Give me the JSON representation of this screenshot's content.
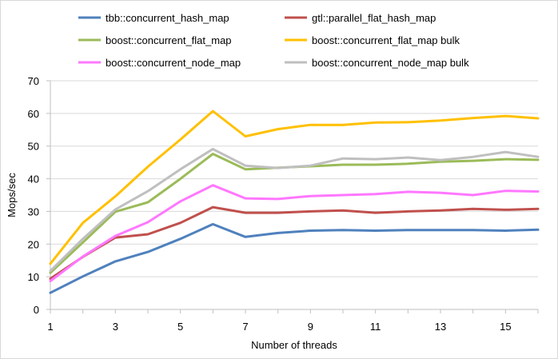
{
  "chart_data": {
    "type": "line",
    "title": "",
    "xlabel": "Number of threads",
    "ylabel": "Mops/sec",
    "xlim": [
      1,
      16
    ],
    "ylim": [
      0,
      70
    ],
    "x": [
      1,
      2,
      3,
      4,
      5,
      6,
      7,
      8,
      9,
      10,
      11,
      12,
      13,
      14,
      15,
      16
    ],
    "x_tick_labels": [
      "1",
      "3",
      "5",
      "7",
      "9",
      "11",
      "13",
      "15"
    ],
    "y_tick_labels": [
      "0",
      "10",
      "20",
      "30",
      "40",
      "50",
      "60",
      "70"
    ],
    "grid": "horizontal",
    "legend_position": "top",
    "series": [
      {
        "name": "tbb::concurrent_hash_map",
        "color": "#4f81bd",
        "values": [
          5.1,
          10.1,
          14.7,
          17.6,
          21.6,
          26.1,
          22.2,
          23.4,
          24.1,
          24.3,
          24.1,
          24.3,
          24.3,
          24.3,
          24.1,
          24.4
        ]
      },
      {
        "name": "gtl::parallel_flat_hash_map",
        "color": "#c0504d",
        "values": [
          9.4,
          16.1,
          22.0,
          23.0,
          26.5,
          31.3,
          29.6,
          29.6,
          30.0,
          30.3,
          29.6,
          30.0,
          30.3,
          30.8,
          30.5,
          30.8
        ]
      },
      {
        "name": "boost::concurrent_flat_map",
        "color": "#9bbb59",
        "values": [
          11.2,
          20.5,
          29.9,
          32.8,
          40.0,
          47.6,
          42.9,
          43.4,
          43.8,
          44.3,
          44.3,
          44.6,
          45.2,
          45.5,
          46.0,
          45.8
        ]
      },
      {
        "name": "boost::concurrent_flat_map bulk",
        "color": "#ffc000",
        "values": [
          14.0,
          26.5,
          34.6,
          43.7,
          52.0,
          60.7,
          53.0,
          55.2,
          56.5,
          56.5,
          57.2,
          57.3,
          57.8,
          58.6,
          59.2,
          58.5
        ]
      },
      {
        "name": "boost::concurrent_node_map",
        "color": "#ff77ff",
        "values": [
          8.7,
          16.2,
          22.5,
          26.7,
          33.1,
          38.0,
          34.0,
          33.8,
          34.7,
          35.0,
          35.3,
          36.0,
          35.7,
          35.0,
          36.3,
          36.1
        ]
      },
      {
        "name": "boost::concurrent_node_map bulk",
        "color": "#bfbfbf",
        "values": [
          11.8,
          21.6,
          30.6,
          36.2,
          42.9,
          49.1,
          44.0,
          43.3,
          44.0,
          46.2,
          46.0,
          46.5,
          45.7,
          46.7,
          48.2,
          46.7
        ]
      }
    ]
  }
}
